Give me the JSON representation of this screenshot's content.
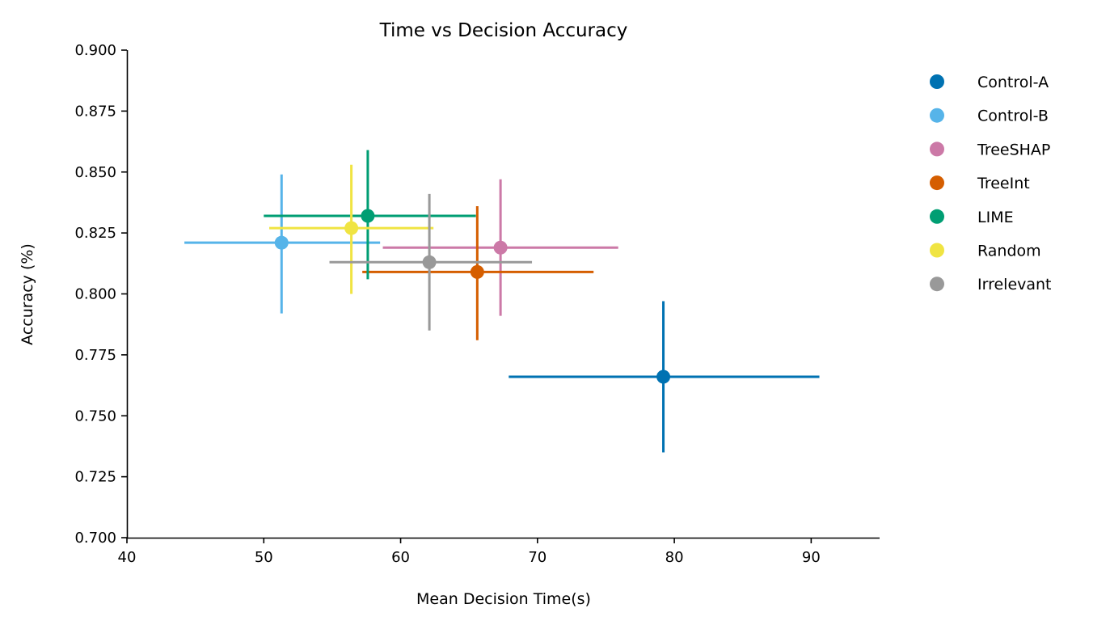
{
  "chart_data": {
    "type": "scatter",
    "title": "Time vs Decision Accuracy",
    "xlabel": "Mean Decision Time(s)",
    "ylabel": "Accuracy (%)",
    "xlim": [
      40,
      95
    ],
    "ylim": [
      0.7,
      0.9
    ],
    "xticks": [
      40,
      50,
      60,
      70,
      80,
      90
    ],
    "xtick_labels": [
      "40",
      "50",
      "60",
      "70",
      "80",
      "90"
    ],
    "yticks": [
      0.7,
      0.725,
      0.75,
      0.775,
      0.8,
      0.825,
      0.85,
      0.875,
      0.9
    ],
    "ytick_labels": [
      "0.700",
      "0.725",
      "0.750",
      "0.775",
      "0.800",
      "0.825",
      "0.850",
      "0.875",
      "0.900"
    ],
    "grid": false,
    "legend_position": "outside-right",
    "series": [
      {
        "name": "Control-A",
        "color": "#0072B2",
        "x": 79.2,
        "y": 0.766,
        "xerr": [
          67.9,
          90.6
        ],
        "yerr": [
          0.735,
          0.797
        ]
      },
      {
        "name": "Control-B",
        "color": "#56B4E9",
        "x": 51.3,
        "y": 0.821,
        "xerr": [
          44.2,
          58.5
        ],
        "yerr": [
          0.792,
          0.849
        ]
      },
      {
        "name": "TreeSHAP",
        "color": "#CC79A7",
        "x": 67.3,
        "y": 0.819,
        "xerr": [
          58.7,
          75.9
        ],
        "yerr": [
          0.791,
          0.847
        ]
      },
      {
        "name": "TreeInt",
        "color": "#D55E00",
        "x": 65.6,
        "y": 0.809,
        "xerr": [
          57.2,
          74.1
        ],
        "yerr": [
          0.781,
          0.836
        ]
      },
      {
        "name": "LIME",
        "color": "#009E73",
        "x": 57.6,
        "y": 0.832,
        "xerr": [
          50.0,
          65.5
        ],
        "yerr": [
          0.806,
          0.859
        ]
      },
      {
        "name": "Random",
        "color": "#F0E442",
        "x": 56.4,
        "y": 0.827,
        "xerr": [
          50.4,
          62.4
        ],
        "yerr": [
          0.8,
          0.853
        ]
      },
      {
        "name": "Irrelevant",
        "color": "#999999",
        "x": 62.1,
        "y": 0.813,
        "xerr": [
          54.8,
          69.6
        ],
        "yerr": [
          0.785,
          0.841
        ]
      }
    ]
  }
}
